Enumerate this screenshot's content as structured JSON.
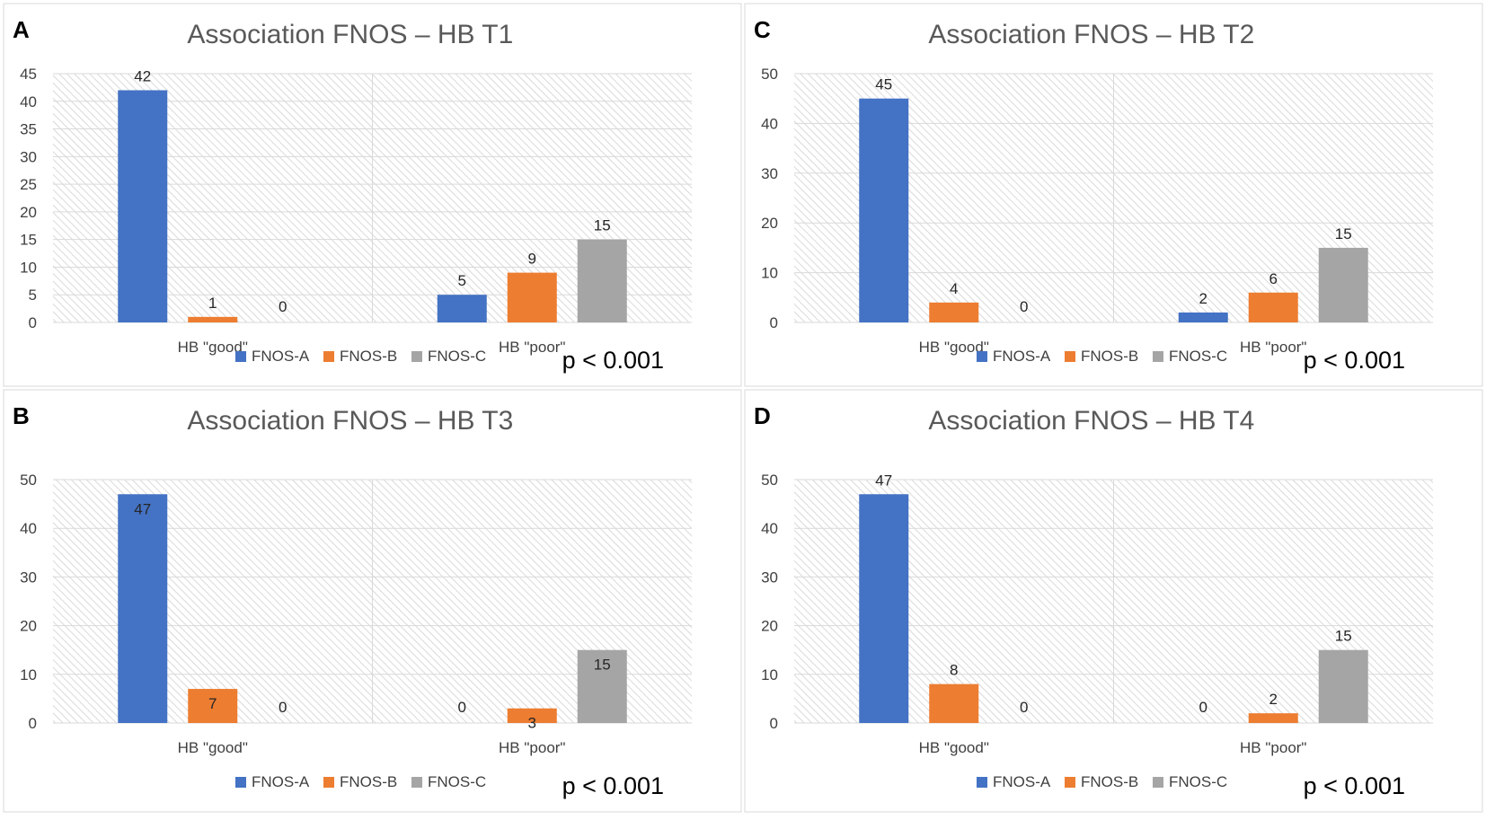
{
  "colors": {
    "FNOS-A": "#4472c4",
    "FNOS-B": "#ed7d31",
    "FNOS-C": "#a5a5a5",
    "grid": "#d9d9d9",
    "hatch": "#d0d0d0",
    "title": "#595959",
    "text": "#404040"
  },
  "chart_data": [
    {
      "panel": "A",
      "type": "bar",
      "title": "Association FNOS – HB T1",
      "categories": [
        "HB \"good\"",
        "HB \"poor\""
      ],
      "series": [
        {
          "name": "FNOS-A",
          "values": [
            42,
            5
          ]
        },
        {
          "name": "FNOS-B",
          "values": [
            1,
            9
          ]
        },
        {
          "name": "FNOS-C",
          "values": [
            0,
            15
          ]
        }
      ],
      "ylim": [
        0,
        45
      ],
      "yticks": [
        0,
        5,
        10,
        15,
        20,
        25,
        30,
        35,
        40,
        45
      ],
      "pvalue": "p < 0.001",
      "legend": "bottom"
    },
    {
      "panel": "C",
      "type": "bar",
      "title": "Association FNOS – HB T2",
      "categories": [
        "HB \"good\"",
        "HB \"poor\""
      ],
      "series": [
        {
          "name": "FNOS-A",
          "values": [
            45,
            2
          ]
        },
        {
          "name": "FNOS-B",
          "values": [
            4,
            6
          ]
        },
        {
          "name": "FNOS-C",
          "values": [
            0,
            15
          ]
        }
      ],
      "ylim": [
        0,
        50
      ],
      "yticks": [
        0,
        10,
        20,
        30,
        40,
        50
      ],
      "pvalue": "p < 0.001",
      "legend": "bottom"
    },
    {
      "panel": "B",
      "type": "bar",
      "title": "Association FNOS – HB T3",
      "categories": [
        "HB \"good\"",
        "HB \"poor\""
      ],
      "series": [
        {
          "name": "FNOS-A",
          "values": [
            47,
            0
          ]
        },
        {
          "name": "FNOS-B",
          "values": [
            7,
            3
          ]
        },
        {
          "name": "FNOS-C",
          "values": [
            0,
            15
          ]
        }
      ],
      "ylim": [
        0,
        50
      ],
      "yticks": [
        0,
        10,
        20,
        30,
        40,
        50
      ],
      "pvalue": "p < 0.001",
      "legend": "bottom"
    },
    {
      "panel": "D",
      "type": "bar",
      "title": "Association FNOS – HB T4",
      "categories": [
        "HB \"good\"",
        "HB \"poor\""
      ],
      "series": [
        {
          "name": "FNOS-A",
          "values": [
            47,
            0
          ]
        },
        {
          "name": "FNOS-B",
          "values": [
            8,
            2
          ]
        },
        {
          "name": "FNOS-C",
          "values": [
            0,
            15
          ]
        }
      ],
      "ylim": [
        0,
        50
      ],
      "yticks": [
        0,
        10,
        20,
        30,
        40,
        50
      ],
      "pvalue": "p < 0.001",
      "legend": "bottom"
    }
  ]
}
